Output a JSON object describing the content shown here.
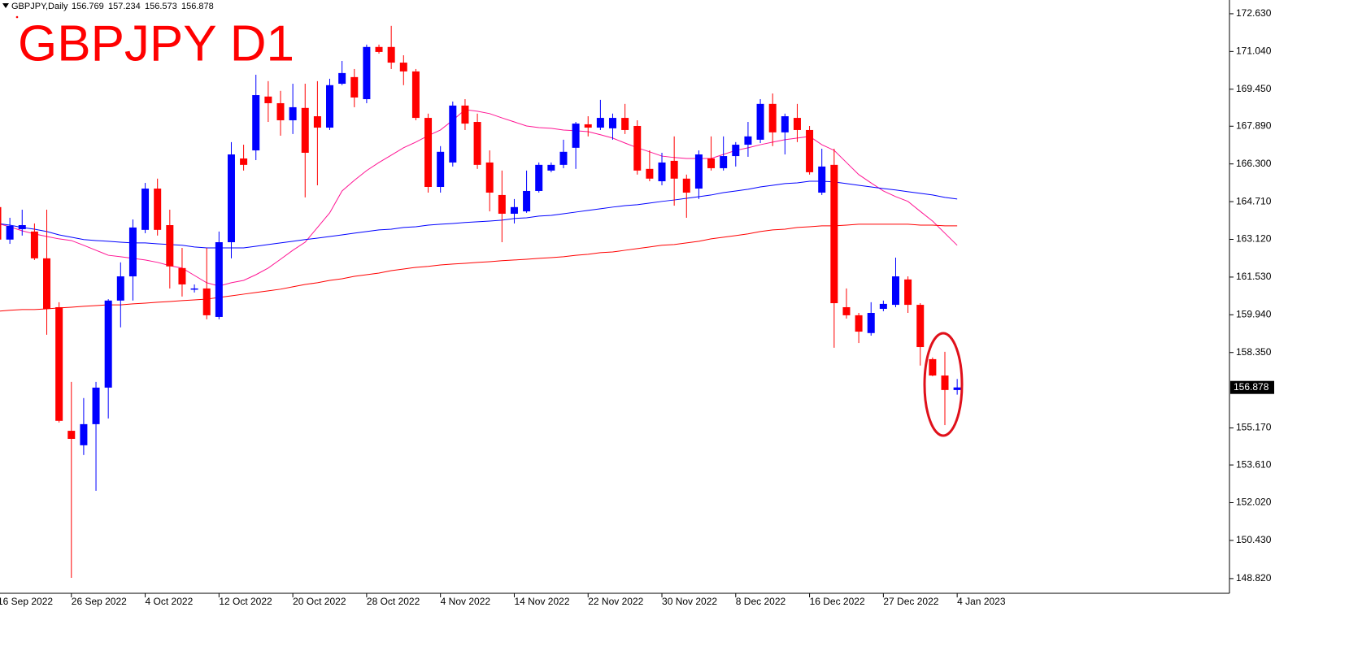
{
  "chart_data": {
    "type": "candlestick",
    "header": "GBPJPY,Daily",
    "title": "GBPJPY D1",
    "up_color": "#0000ff",
    "down_color": "#ff0000",
    "categories": [
      "16 Sep 2022",
      null,
      null,
      null,
      null,
      null,
      "26 Sep 2022",
      null,
      null,
      null,
      null,
      null,
      "4 Oct 2022",
      null,
      null,
      null,
      null,
      null,
      "12 Oct 2022",
      null,
      null,
      null,
      null,
      null,
      "20 Oct 2022",
      null,
      null,
      null,
      null,
      null,
      "28 Oct 2022",
      null,
      null,
      null,
      null,
      null,
      "4 Nov 2022",
      null,
      null,
      null,
      null,
      null,
      "14 Nov 2022",
      null,
      null,
      null,
      null,
      null,
      "22 Nov 2022",
      null,
      null,
      null,
      null,
      null,
      "30 Nov 2022",
      null,
      null,
      null,
      null,
      null,
      "8 Dec 2022",
      null,
      null,
      null,
      null,
      null,
      "16 Dec 2022",
      null,
      null,
      null,
      null,
      null,
      "27 Dec 2022",
      null,
      null,
      null,
      null,
      null,
      "4 Jan 2023"
    ],
    "open": [
      164.48,
      163.11,
      163.55,
      163.45,
      162.32,
      160.26,
      155.05,
      154.44,
      155.33,
      156.87,
      160.54,
      161.56,
      163.52,
      165.26,
      163.72,
      161.91,
      161.02,
      161.05,
      159.85,
      163.0,
      166.53,
      166.87,
      169.14,
      168.86,
      168.14,
      168.66,
      168.31,
      167.83,
      169.68,
      169.96,
      169.03,
      171.23,
      171.23,
      170.57,
      170.2,
      168.24,
      165.33,
      166.36,
      168.76,
      168.07,
      166.36,
      164.99,
      164.2,
      164.3,
      165.16,
      166.02,
      166.26,
      166.98,
      167.97,
      167.83,
      167.8,
      168.24,
      167.9,
      166.09,
      165.57,
      166.43,
      165.68,
      165.26,
      166.53,
      166.12,
      166.63,
      167.11,
      167.32,
      168.83,
      167.63,
      168.24,
      167.73,
      165.09,
      166.26,
      160.26,
      159.92,
      159.17,
      160.19,
      160.36,
      161.43,
      160.36,
      158.07,
      157.38,
      156.769
    ],
    "high": [
      164.65,
      164.03,
      164.37,
      163.79,
      164.37,
      160.47,
      157.11,
      156.43,
      157.11,
      160.6,
      162.15,
      163.96,
      165.5,
      165.68,
      164.37,
      162.76,
      161.22,
      162.76,
      163.45,
      167.22,
      167.11,
      170.06,
      169.79,
      169.38,
      169.68,
      169.68,
      169.79,
      169.89,
      170.64,
      170.3,
      171.33,
      171.33,
      172.12,
      170.88,
      170.3,
      168.42,
      167.05,
      168.93,
      169.03,
      168.42,
      166.87,
      166.02,
      164.82,
      166.02,
      166.36,
      166.36,
      167.32,
      168.07,
      168.31,
      169.0,
      168.42,
      168.83,
      168.14,
      166.87,
      166.77,
      167.46,
      165.85,
      166.87,
      167.46,
      167.46,
      167.22,
      168.07,
      169.03,
      169.27,
      168.42,
      168.83,
      167.9,
      166.94,
      166.94,
      161.05,
      160.02,
      160.47,
      160.54,
      162.35,
      161.56,
      160.43,
      158.14,
      158.38,
      157.234
    ],
    "low": [
      162.93,
      162.93,
      163.28,
      162.25,
      159.1,
      155.4,
      148.85,
      154.03,
      152.52,
      155.57,
      159.41,
      160.54,
      163.38,
      163.28,
      161.05,
      160.71,
      160.88,
      159.75,
      159.75,
      162.32,
      166.02,
      166.46,
      168.07,
      167.49,
      167.56,
      164.89,
      165.4,
      167.73,
      169.62,
      168.69,
      168.86,
      170.95,
      170.3,
      169.62,
      168.14,
      165.09,
      165.09,
      166.19,
      167.73,
      166.09,
      164.3,
      163.0,
      163.79,
      164.24,
      165.09,
      165.95,
      166.12,
      166.09,
      167.46,
      167.73,
      167.32,
      167.56,
      165.85,
      165.57,
      165.4,
      164.54,
      164.03,
      164.82,
      166.02,
      166.02,
      166.19,
      166.6,
      167.18,
      167.05,
      166.7,
      167.22,
      165.85,
      164.99,
      158.55,
      159.78,
      158.75,
      159.06,
      160.09,
      160.26,
      160.02,
      157.8,
      157.35,
      155.29,
      156.573
    ],
    "close": [
      163.11,
      163.69,
      163.72,
      162.32,
      160.19,
      155.47,
      154.71,
      155.33,
      156.87,
      160.54,
      161.56,
      163.62,
      165.26,
      163.52,
      161.98,
      161.22,
      161.05,
      159.92,
      163.0,
      166.7,
      166.26,
      169.2,
      168.86,
      168.14,
      168.69,
      166.77,
      167.83,
      169.62,
      170.13,
      169.1,
      171.23,
      171.02,
      170.57,
      170.2,
      168.24,
      165.33,
      166.81,
      168.76,
      168.0,
      166.26,
      165.09,
      164.2,
      164.48,
      165.16,
      166.26,
      166.26,
      166.81,
      168.0,
      167.83,
      168.24,
      168.24,
      167.73,
      166.02,
      165.68,
      166.36,
      165.68,
      165.09,
      166.7,
      166.12,
      166.63,
      167.11,
      167.46,
      168.83,
      167.63,
      168.31,
      167.73,
      165.95,
      166.19,
      160.43,
      159.92,
      159.23,
      160.02,
      160.4,
      161.56,
      160.36,
      158.58,
      157.38,
      156.77,
      156.878
    ],
    "series": [
      {
        "color": "#ff1493",
        "values": [
          163.79,
          163.65,
          163.48,
          163.35,
          163.24,
          163.14,
          163.07,
          162.87,
          162.66,
          162.45,
          162.39,
          162.32,
          162.25,
          162.15,
          162.01,
          161.91,
          161.6,
          161.29,
          161.15,
          161.29,
          161.39,
          161.63,
          161.91,
          162.28,
          162.66,
          163.0,
          163.62,
          164.24,
          165.16,
          165.61,
          166.02,
          166.36,
          166.67,
          166.98,
          167.22,
          167.49,
          167.73,
          168.14,
          168.59,
          168.52,
          168.42,
          168.24,
          168.07,
          167.9,
          167.83,
          167.8,
          167.73,
          167.7,
          167.66,
          167.53,
          167.39,
          167.18,
          166.98,
          166.81,
          166.63,
          166.57,
          166.53,
          166.53,
          166.53,
          166.7,
          166.87,
          166.98,
          167.11,
          167.22,
          167.32,
          167.39,
          167.46,
          167.11,
          166.87,
          166.36,
          165.85,
          165.5,
          165.16,
          164.92,
          164.72,
          164.3,
          163.89,
          163.38,
          162.87
        ]
      },
      {
        "color": "#0000ff",
        "values": [
          163.79,
          163.72,
          163.62,
          163.55,
          163.45,
          163.31,
          163.21,
          163.11,
          163.07,
          163.04,
          163.0,
          162.97,
          162.97,
          162.93,
          162.9,
          162.87,
          162.8,
          162.76,
          162.76,
          162.76,
          162.76,
          162.83,
          162.9,
          162.97,
          163.04,
          163.11,
          163.17,
          163.24,
          163.31,
          163.38,
          163.45,
          163.52,
          163.55,
          163.62,
          163.65,
          163.72,
          163.76,
          163.79,
          163.83,
          163.86,
          163.89,
          163.93,
          164.0,
          164.03,
          164.1,
          164.13,
          164.2,
          164.27,
          164.34,
          164.41,
          164.48,
          164.54,
          164.58,
          164.65,
          164.72,
          164.78,
          164.85,
          164.92,
          164.99,
          165.09,
          165.16,
          165.23,
          165.33,
          165.4,
          165.47,
          165.5,
          165.57,
          165.57,
          165.54,
          165.47,
          165.4,
          165.33,
          165.26,
          165.2,
          165.13,
          165.06,
          164.99,
          164.89,
          164.82
        ]
      },
      {
        "color": "#ff0000",
        "values": [
          160.09,
          160.13,
          160.16,
          160.16,
          160.19,
          160.23,
          160.26,
          160.3,
          160.33,
          160.36,
          160.36,
          160.4,
          160.43,
          160.47,
          160.5,
          160.54,
          160.57,
          160.6,
          160.67,
          160.74,
          160.81,
          160.88,
          160.95,
          161.02,
          161.12,
          161.22,
          161.29,
          161.39,
          161.46,
          161.56,
          161.63,
          161.7,
          161.8,
          161.87,
          161.94,
          161.98,
          162.04,
          162.08,
          162.11,
          162.15,
          162.18,
          162.22,
          162.25,
          162.28,
          162.32,
          162.35,
          162.39,
          162.45,
          162.49,
          162.56,
          162.59,
          162.66,
          162.73,
          162.8,
          162.87,
          162.9,
          162.97,
          163.04,
          163.14,
          163.21,
          163.28,
          163.35,
          163.45,
          163.52,
          163.55,
          163.62,
          163.65,
          163.69,
          163.69,
          163.72,
          163.76,
          163.76,
          163.76,
          163.76,
          163.76,
          163.72,
          163.72,
          163.69,
          163.69
        ]
      }
    ],
    "ylim": [
      148.2,
      173.21
    ],
    "yticks": [
      {
        "value": 172.63,
        "label": "172.630"
      },
      {
        "value": 171.04,
        "label": "171.040"
      },
      {
        "value": 169.45,
        "label": "169.450"
      },
      {
        "value": 167.89,
        "label": "167.890"
      },
      {
        "value": 166.3,
        "label": "166.300"
      },
      {
        "value": 164.71,
        "label": "164.710"
      },
      {
        "value": 163.12,
        "label": "163.120"
      },
      {
        "value": 161.53,
        "label": "161.530"
      },
      {
        "value": 159.94,
        "label": "159.940"
      },
      {
        "value": 158.35,
        "label": "158.350"
      },
      {
        "value": 155.17,
        "label": "155.170"
      },
      {
        "value": 153.61,
        "label": "153.610"
      },
      {
        "value": 152.02,
        "label": "152.020"
      },
      {
        "value": 150.43,
        "label": "150.430"
      },
      {
        "value": 148.82,
        "label": "148.820"
      }
    ]
  }
}
